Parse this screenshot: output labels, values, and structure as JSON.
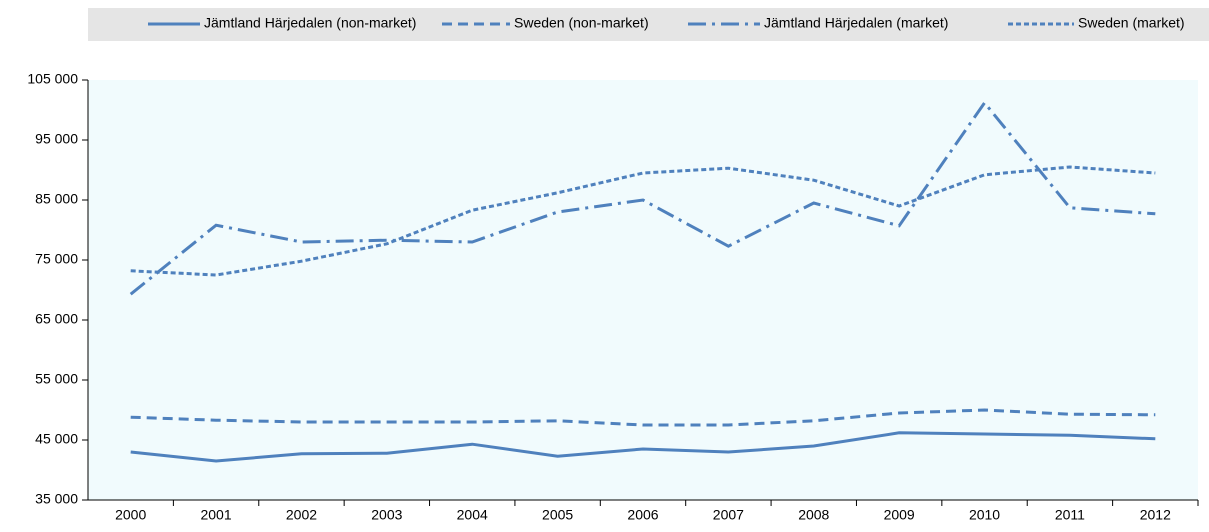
{
  "chart_data": {
    "type": "line",
    "categories": [
      "2000",
      "2001",
      "2002",
      "2003",
      "2004",
      "2005",
      "2006",
      "2007",
      "2008",
      "2009",
      "2010",
      "2011",
      "2012"
    ],
    "series": [
      {
        "name": "Jämtland Härjedalen (non-market)",
        "color": "#4f81bd",
        "dash": "solid",
        "values": [
          43000,
          41500,
          42700,
          42800,
          44300,
          42300,
          43500,
          43000,
          44000,
          46200,
          46000,
          45800,
          45200
        ]
      },
      {
        "name": "Sweden (non-market)",
        "color": "#4f81bd",
        "dash": "dash",
        "values": [
          48800,
          48300,
          48000,
          48000,
          48000,
          48200,
          47500,
          47500,
          48200,
          49500,
          50000,
          49300,
          49200
        ]
      },
      {
        "name": "Jämtland Härjedalen (market)",
        "color": "#4f81bd",
        "dash": "dashdot",
        "values": [
          69300,
          80800,
          78000,
          78300,
          78000,
          83000,
          85000,
          77300,
          84500,
          80700,
          101200,
          83700,
          82700
        ]
      },
      {
        "name": "Sweden (market)",
        "color": "#4f81bd",
        "dash": "dot",
        "values": [
          73200,
          72500,
          74800,
          77700,
          83300,
          86200,
          89500,
          90300,
          88300,
          84000,
          89200,
          90500,
          89500
        ]
      }
    ],
    "ylim": [
      35000,
      105000
    ],
    "yticks": [
      {
        "value": 35000,
        "label": "35 000"
      },
      {
        "value": 45000,
        "label": "45 000"
      },
      {
        "value": 55000,
        "label": "55 000"
      },
      {
        "value": 65000,
        "label": "65 000"
      },
      {
        "value": 75000,
        "label": "75 000"
      },
      {
        "value": 85000,
        "label": "85 000"
      },
      {
        "value": 95000,
        "label": "95 000"
      },
      {
        "value": 105000,
        "label": "105 000"
      }
    ],
    "grid": false,
    "legend": "top"
  }
}
